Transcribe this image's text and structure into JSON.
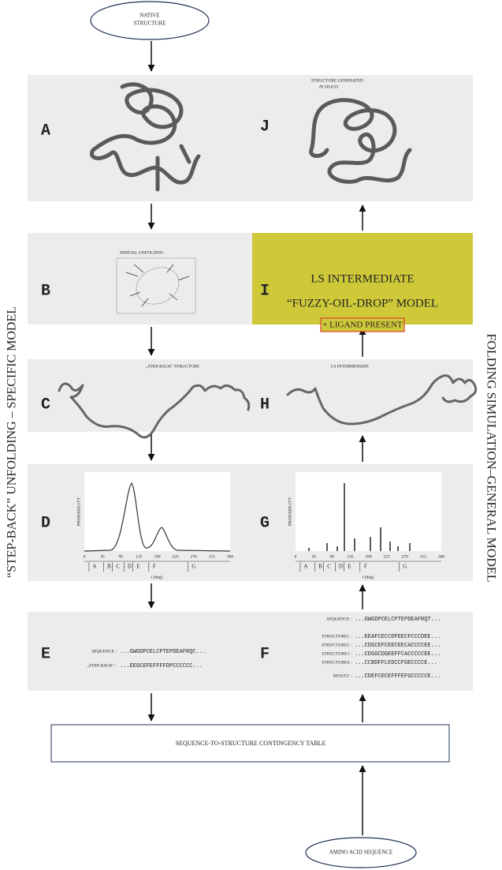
{
  "native_structure": [
    "NATIVE",
    "STRUCTURE"
  ],
  "amino_acid_sequence": "AMINO ACID SEQUENCE",
  "contingency_table": "SEQUENCE-TO-STRUCTURE  CONTINGENCY TABLE",
  "side_labels": {
    "left": "“STEP-BACK” UNFOLDING  –  SPECIFIC MODEL",
    "right": "FOLDING  SIMULATION–GENERAL  MODEL"
  },
  "panels": {
    "A": {
      "letter": "A"
    },
    "B": {
      "letter": "B",
      "caption": "PARTIAL UNFOLDING"
    },
    "C": {
      "letter": "C",
      "caption": "„STEP-BACK\" STRUCTURE"
    },
    "D": {
      "letter": "D",
      "y_label": "PROBABILITY",
      "x_label": "t [deg]"
    },
    "E": {
      "letter": "E",
      "rows": [
        [
          "SEQUENCE :",
          "...GWGDPCELCPTEPDEAFRQC..."
        ],
        [
          "„STEP-BACK\" :",
          "...EEGCEFEFFFFDPCCCCCC..."
        ]
      ]
    },
    "F": {
      "letter": "F",
      "rows": [
        [
          "SEQUENCE :",
          "...GWGDPCELCPTEPDEAFRQT..."
        ],
        [
          "STRUCTURE1 :",
          "...EEAFCECCDFEECFCCCDEE..."
        ],
        [
          "STRUCTURE2 :",
          "...CDGCEFCEECEECACCCCEE..."
        ],
        [
          "STRUCTURE3 :",
          "...CDGGCDGEEFFCACCCCCEE..."
        ],
        [
          "STRUCTURE4 :",
          "...CCBDFFLEDCCFGECCCCE..."
        ],
        [
          "RESULT :",
          "...CDEFCECEFFFEFGCCCCCE..."
        ]
      ]
    },
    "G": {
      "letter": "G",
      "y_label": "PROBABILITY",
      "x_label": "t [deg]"
    },
    "H": {
      "letter": "H",
      "caption": "LS INTERMEDIATE"
    },
    "I": {
      "letter": "I",
      "lines": [
        "LS INTERMEDIATE",
        "“FUZZY-OIL-DROP” MODEL"
      ],
      "ligand": "+ LIGAND PRESENT"
    },
    "J": {
      "letter": "J",
      "caption": [
        "STRUCTURE GENERATED",
        "IN SILICO"
      ]
    }
  },
  "plot_x_ticks": [
    0,
    45,
    90,
    135,
    180,
    225,
    270,
    315,
    360
  ],
  "plot_regions": [
    "A",
    "B",
    "C",
    "D",
    "E",
    "F",
    "G"
  ]
}
